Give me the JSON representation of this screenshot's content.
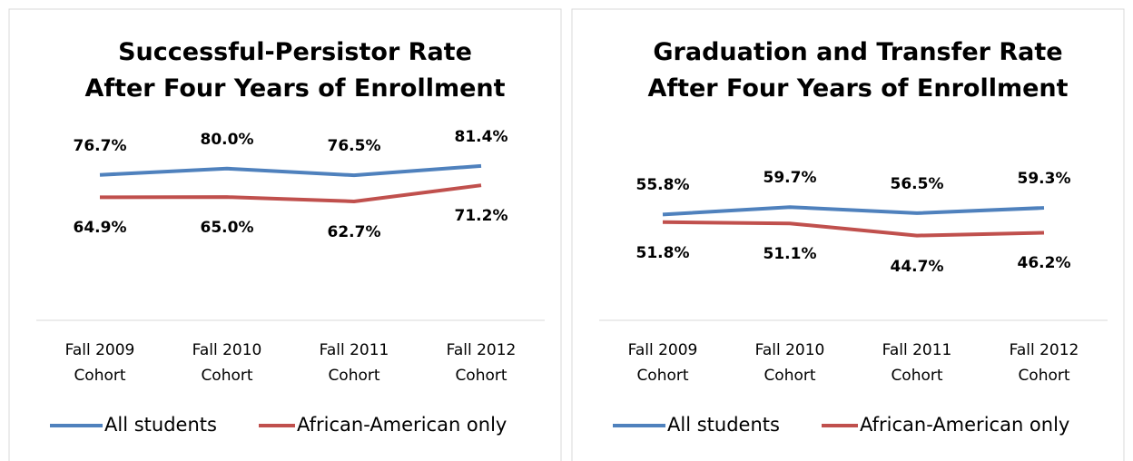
{
  "chart_data": [
    {
      "type": "line",
      "title": "Successful-Persistor Rate\nAfter Four Years of Enrollment",
      "categories": [
        "Fall 2009\nCohort",
        "Fall 2010\nCohort",
        "Fall 2011\nCohort",
        "Fall 2012\nCohort"
      ],
      "ylim": [
        0,
        100
      ],
      "series": [
        {
          "name": "All students",
          "color": "#4f81bd",
          "values": [
            76.7,
            80.0,
            76.5,
            81.4
          ],
          "value_labels": [
            "76.7%",
            "80.0%",
            "76.5%",
            "81.4%"
          ]
        },
        {
          "name": "African-American only",
          "color": "#c0504d",
          "values": [
            64.9,
            65.0,
            62.7,
            71.2
          ],
          "value_labels": [
            "64.9%",
            "65.0%",
            "62.7%",
            "71.2%"
          ]
        }
      ],
      "legend": "bottom"
    },
    {
      "type": "line",
      "title": "Graduation and Transfer Rate\nAfter Four Years of Enrollment",
      "categories": [
        "Fall 2009\nCohort",
        "Fall 2010\nCohort",
        "Fall 2011\nCohort",
        "Fall 2012\nCohort"
      ],
      "ylim": [
        0,
        100
      ],
      "series": [
        {
          "name": "All students",
          "color": "#4f81bd",
          "values": [
            55.8,
            59.7,
            56.5,
            59.3
          ],
          "value_labels": [
            "55.8%",
            "59.7%",
            "56.5%",
            "59.3%"
          ]
        },
        {
          "name": "African-American only",
          "color": "#c0504d",
          "values": [
            51.8,
            51.1,
            44.7,
            46.2
          ],
          "value_labels": [
            "51.8%",
            "51.1%",
            "44.7%",
            "46.2%"
          ]
        }
      ],
      "legend": "bottom"
    }
  ]
}
